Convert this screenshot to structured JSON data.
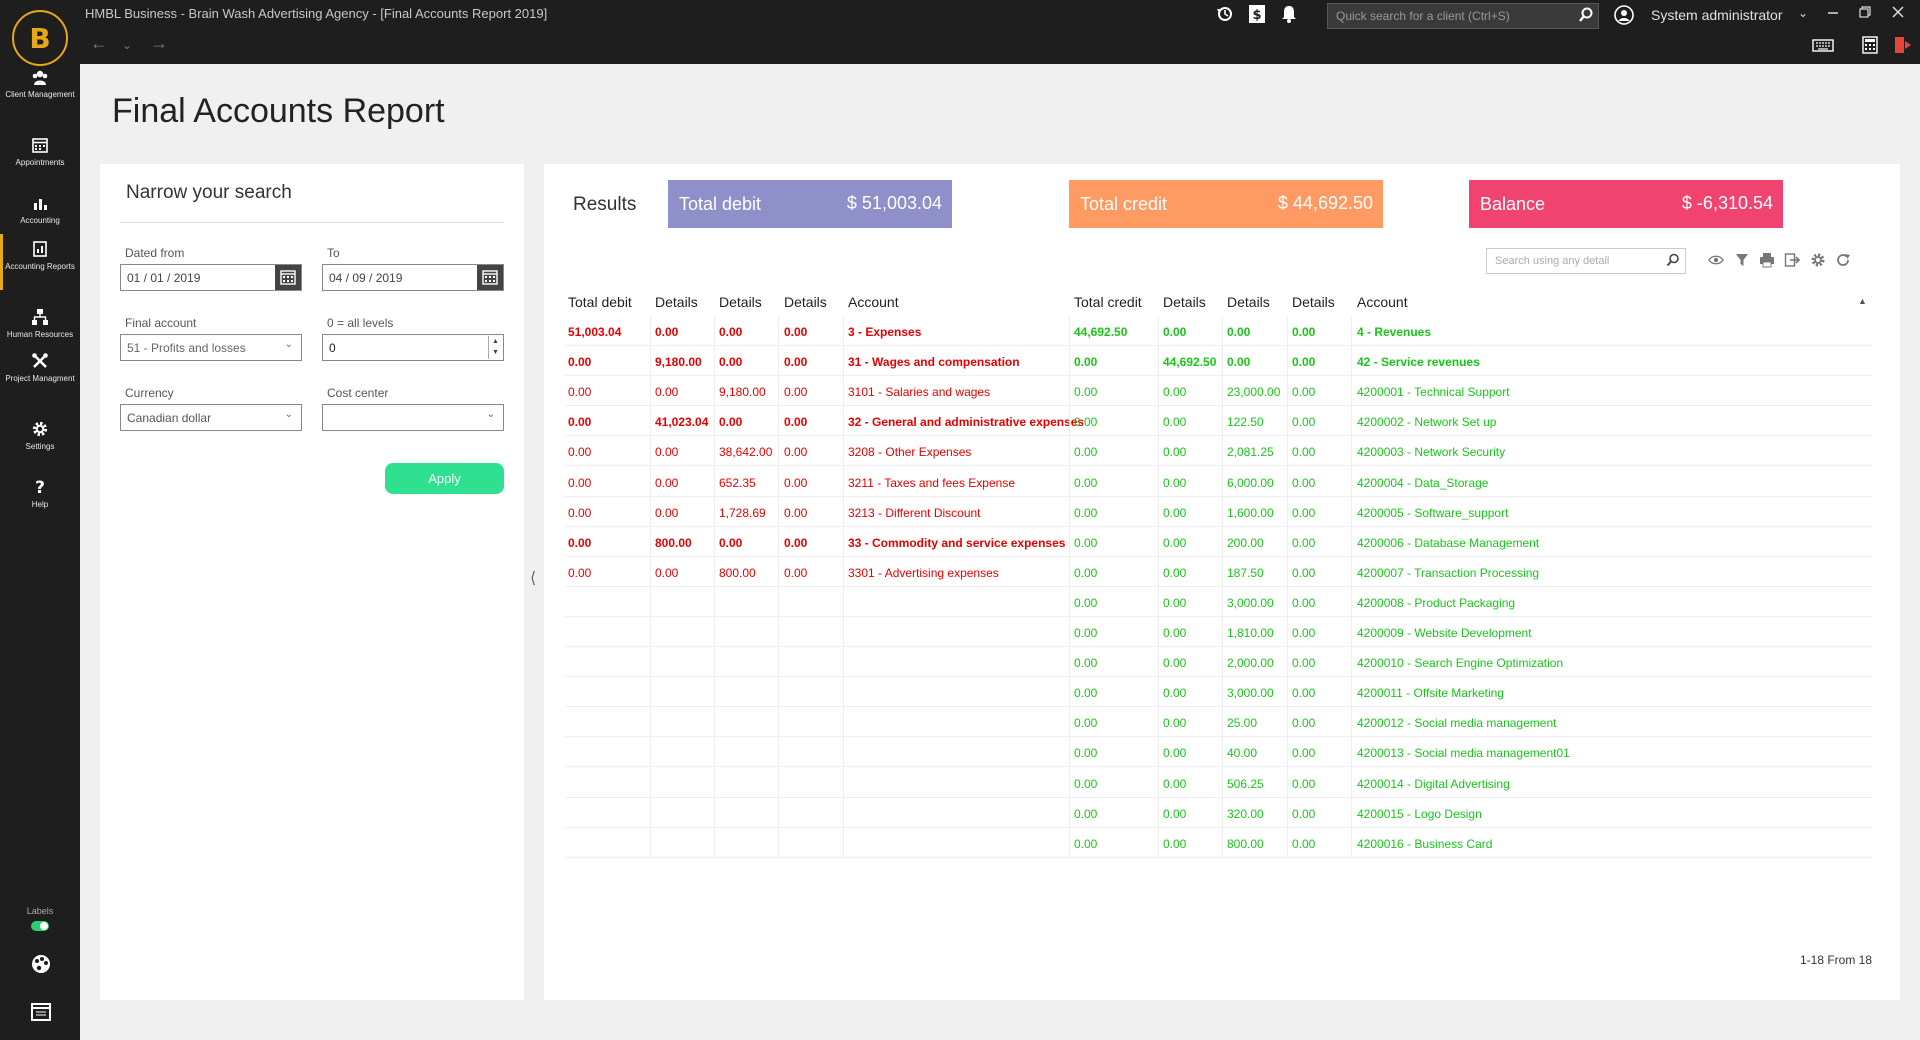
{
  "app": {
    "window_title": "HMBL Business - Brain Wash Advertising Agency  - [Final Accounts Report 2019]",
    "logo_letter": "B",
    "quick_search_placeholder": "Quick search for a client (Ctrl+S)",
    "user_name": "System administrator"
  },
  "sidebar": {
    "items": [
      {
        "label": "Client Management",
        "icon": "users-icon"
      },
      {
        "label": "Appointments",
        "icon": "calendar-icon"
      },
      {
        "label": "Accounting",
        "icon": "bar-chart-icon"
      },
      {
        "label": "Accounting Reports",
        "icon": "report-icon",
        "active": true
      },
      {
        "label": "Human Resources",
        "icon": "org-chart-icon"
      },
      {
        "label": "Project Managment",
        "icon": "tools-icon"
      },
      {
        "label": "Settings",
        "icon": "gear-icon"
      },
      {
        "label": "Help",
        "icon": "question-icon"
      }
    ],
    "labels_toggle_text": "Labels",
    "labels_toggle_on": true
  },
  "page": {
    "title": "Final Accounts Report"
  },
  "filter": {
    "heading": "Narrow your search",
    "dated_from_label": "Dated from",
    "dated_from_value": "01  /  01  /  2019",
    "to_label": "To",
    "to_value": "04  /  09  /  2019",
    "final_account_label": "Final account",
    "final_account_value": "51 - Profits and losses",
    "levels_label": "0 = all levels",
    "levels_value": "0",
    "currency_label": "Currency",
    "currency_value": "Canadian dollar",
    "cost_center_label": "Cost center",
    "cost_center_value": "",
    "apply_label": "Apply"
  },
  "results": {
    "heading": "Results",
    "total_debit_label": "Total debit",
    "total_debit_value": "$ 51,003.04",
    "total_credit_label": "Total credit",
    "total_credit_value": "$ 44,692.50",
    "balance_label": "Balance",
    "balance_value": "$ -6,310.54",
    "search_placeholder": "Search using any detail",
    "colors": {
      "debit": "#8f8fc9",
      "credit": "#ff9a63",
      "balance": "#f0436f",
      "debit_text": "#e60000",
      "credit_text": "#19c519"
    },
    "headers": [
      "Total debit",
      "Details",
      "Details",
      "Details",
      "Account",
      "Total credit",
      "Details",
      "Details",
      "Details",
      "Account"
    ],
    "debit_rows": [
      {
        "total": "51,003.04",
        "d1": "0.00",
        "d2": "0.00",
        "d3": "0.00",
        "account": "3 - Expenses",
        "bold": true
      },
      {
        "total": "0.00",
        "d1": "9,180.00",
        "d2": "0.00",
        "d3": "0.00",
        "account": "31 - Wages and compensation",
        "bold": true
      },
      {
        "total": "0.00",
        "d1": "0.00",
        "d2": "9,180.00",
        "d3": "0.00",
        "account": "3101 - Salaries and wages",
        "bold": false
      },
      {
        "total": "0.00",
        "d1": "41,023.04",
        "d2": "0.00",
        "d3": "0.00",
        "account": "32 - General and administrative expenses",
        "bold": true
      },
      {
        "total": "0.00",
        "d1": "0.00",
        "d2": "38,642.00",
        "d3": "0.00",
        "account": "3208 - Other Expenses",
        "bold": false
      },
      {
        "total": "0.00",
        "d1": "0.00",
        "d2": "652.35",
        "d3": "0.00",
        "account": "3211 - Taxes and fees Expense",
        "bold": false
      },
      {
        "total": "0.00",
        "d1": "0.00",
        "d2": "1,728.69",
        "d3": "0.00",
        "account": "3213 - Different Discount",
        "bold": false
      },
      {
        "total": "0.00",
        "d1": "800.00",
        "d2": "0.00",
        "d3": "0.00",
        "account": "33 - Commodity and service expenses",
        "bold": true
      },
      {
        "total": "0.00",
        "d1": "0.00",
        "d2": "800.00",
        "d3": "0.00",
        "account": "3301 - Advertising expenses",
        "bold": false
      }
    ],
    "credit_rows": [
      {
        "total": "44,692.50",
        "d1": "0.00",
        "d2": "0.00",
        "d3": "0.00",
        "account": "4 - Revenues",
        "bold": true
      },
      {
        "total": "0.00",
        "d1": "44,692.50",
        "d2": "0.00",
        "d3": "0.00",
        "account": "42 - Service revenues",
        "bold": true
      },
      {
        "total": "0.00",
        "d1": "0.00",
        "d2": "23,000.00",
        "d3": "0.00",
        "account": "4200001 - Technical Support",
        "bold": false
      },
      {
        "total": "0.00",
        "d1": "0.00",
        "d2": "122.50",
        "d3": "0.00",
        "account": "4200002 - Network Set up",
        "bold": false
      },
      {
        "total": "0.00",
        "d1": "0.00",
        "d2": "2,081.25",
        "d3": "0.00",
        "account": "4200003 - Network Security",
        "bold": false
      },
      {
        "total": "0.00",
        "d1": "0.00",
        "d2": "6,000.00",
        "d3": "0.00",
        "account": "4200004 - Data_Storage",
        "bold": false
      },
      {
        "total": "0.00",
        "d1": "0.00",
        "d2": "1,600.00",
        "d3": "0.00",
        "account": "4200005 - Software_support",
        "bold": false
      },
      {
        "total": "0.00",
        "d1": "0.00",
        "d2": "200.00",
        "d3": "0.00",
        "account": "4200006 - Database Management",
        "bold": false
      },
      {
        "total": "0.00",
        "d1": "0.00",
        "d2": "187.50",
        "d3": "0.00",
        "account": "4200007 - Transaction Processing",
        "bold": false
      },
      {
        "total": "0.00",
        "d1": "0.00",
        "d2": "3,000.00",
        "d3": "0.00",
        "account": "4200008 - Product Packaging",
        "bold": false
      },
      {
        "total": "0.00",
        "d1": "0.00",
        "d2": "1,810.00",
        "d3": "0.00",
        "account": "4200009 - Website Development",
        "bold": false
      },
      {
        "total": "0.00",
        "d1": "0.00",
        "d2": "2,000.00",
        "d3": "0.00",
        "account": "4200010 - Search Engine Optimization",
        "bold": false
      },
      {
        "total": "0.00",
        "d1": "0.00",
        "d2": "3,000.00",
        "d3": "0.00",
        "account": "4200011 - Offsite Marketing",
        "bold": false
      },
      {
        "total": "0.00",
        "d1": "0.00",
        "d2": "25.00",
        "d3": "0.00",
        "account": "4200012 - Social media management",
        "bold": false
      },
      {
        "total": "0.00",
        "d1": "0.00",
        "d2": "40.00",
        "d3": "0.00",
        "account": "4200013 - Social media management01",
        "bold": false
      },
      {
        "total": "0.00",
        "d1": "0.00",
        "d2": "506.25",
        "d3": "0.00",
        "account": "4200014 - Digital Advertising",
        "bold": false
      },
      {
        "total": "0.00",
        "d1": "0.00",
        "d2": "320.00",
        "d3": "0.00",
        "account": "4200015 - Logo Design",
        "bold": false
      },
      {
        "total": "0.00",
        "d1": "0.00",
        "d2": "800.00",
        "d3": "0.00",
        "account": "4200016 - Business Card",
        "bold": false
      }
    ],
    "pagination": "1-18 From 18"
  }
}
